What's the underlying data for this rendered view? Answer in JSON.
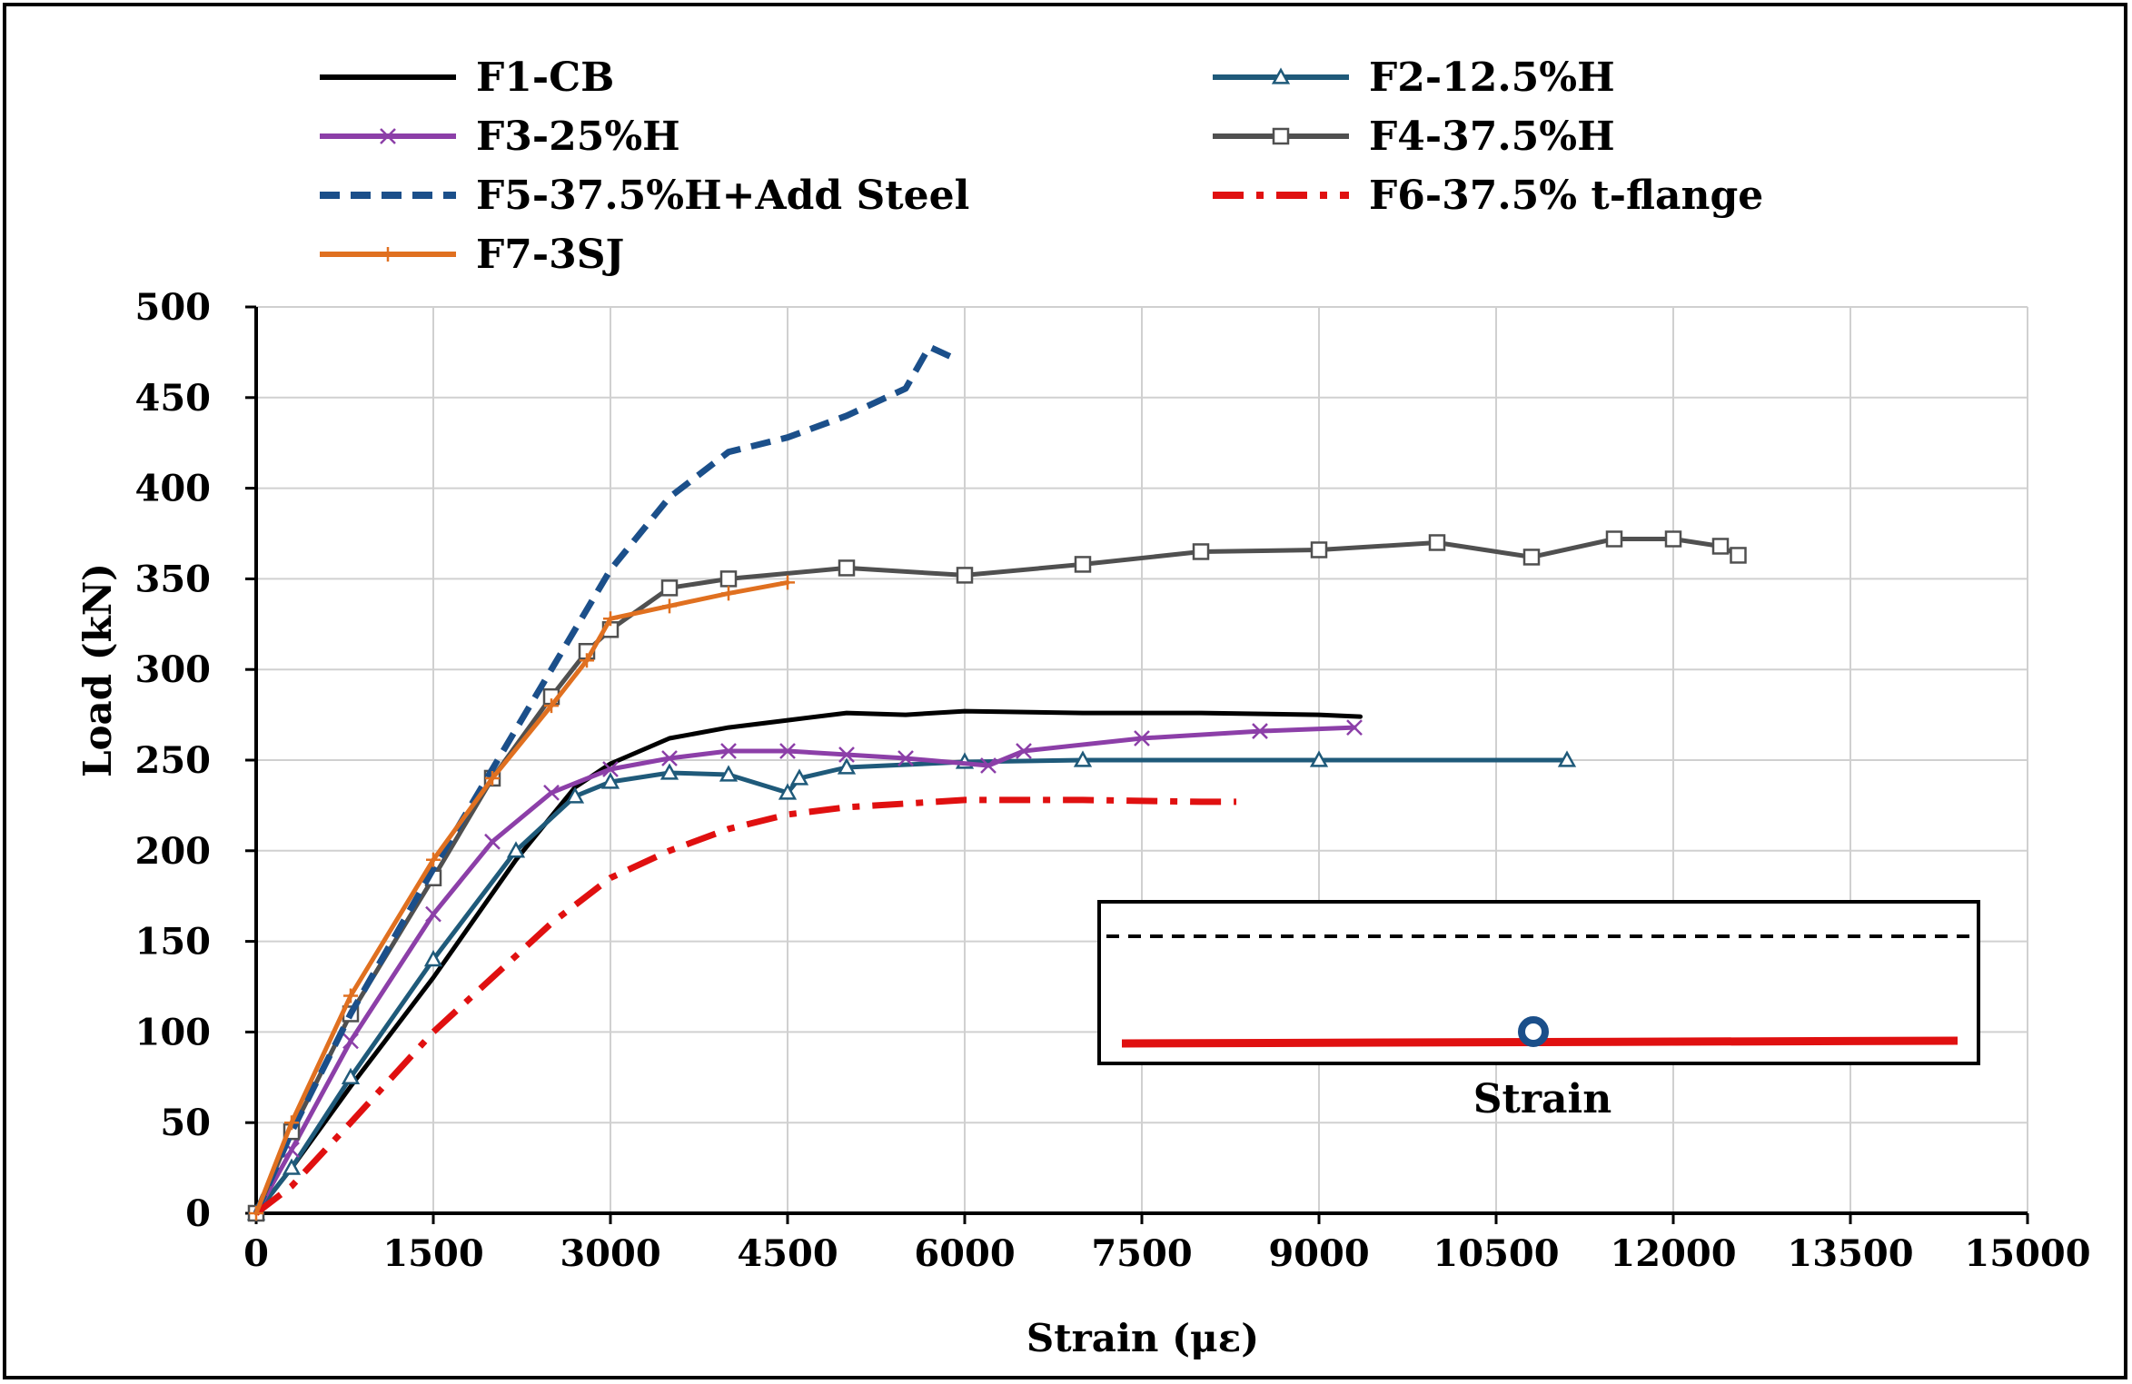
{
  "chart_data": {
    "type": "line",
    "title": "",
    "xlabel": "Strain (με)",
    "ylabel": "Load (kN)",
    "xlim": [
      0,
      15000
    ],
    "ylim": [
      0,
      500
    ],
    "x_ticks": [
      0,
      1500,
      3000,
      4500,
      6000,
      7500,
      9000,
      10500,
      12000,
      13500,
      15000
    ],
    "y_ticks": [
      0,
      50,
      100,
      150,
      200,
      250,
      300,
      350,
      400,
      450,
      500
    ],
    "grid": true,
    "legend_position": "top",
    "series": [
      {
        "name": "F1-CB",
        "color": "#000000",
        "dash": "solid",
        "marker": "none",
        "x": [
          0,
          300,
          800,
          1500,
          2200,
          2700,
          3000,
          3500,
          4000,
          4500,
          5000,
          5500,
          6000,
          7000,
          8000,
          9000,
          9350
        ],
        "y": [
          0,
          25,
          70,
          130,
          195,
          235,
          248,
          262,
          268,
          272,
          276,
          275,
          277,
          276,
          276,
          275,
          274
        ]
      },
      {
        "name": "F2-12.5%H",
        "color": "#1f5a7a",
        "dash": "solid",
        "marker": "triangle",
        "x": [
          0,
          300,
          800,
          1500,
          2200,
          2700,
          3000,
          3500,
          4000,
          4500,
          4600,
          5000,
          6000,
          7000,
          9000,
          11100
        ],
        "y": [
          0,
          25,
          75,
          140,
          200,
          230,
          238,
          243,
          242,
          232,
          240,
          246,
          249,
          250,
          250,
          250
        ]
      },
      {
        "name": "F3-25%H",
        "color": "#8c3fa8",
        "dash": "solid",
        "marker": "x",
        "x": [
          0,
          300,
          800,
          1500,
          2000,
          2500,
          3000,
          3500,
          4000,
          4500,
          5000,
          5500,
          6200,
          6500,
          7500,
          8500,
          9300
        ],
        "y": [
          0,
          35,
          95,
          165,
          205,
          232,
          245,
          251,
          255,
          255,
          253,
          251,
          247,
          255,
          262,
          266,
          268
        ]
      },
      {
        "name": "F4-37.5%H",
        "color": "#505050",
        "dash": "solid",
        "marker": "square",
        "x": [
          0,
          300,
          800,
          1500,
          2000,
          2500,
          2800,
          3000,
          3500,
          4000,
          5000,
          6000,
          7000,
          8000,
          9000,
          10000,
          10800,
          11500,
          12000,
          12400,
          12550
        ],
        "y": [
          0,
          45,
          110,
          185,
          240,
          285,
          310,
          322,
          345,
          350,
          356,
          352,
          358,
          365,
          366,
          370,
          362,
          372,
          372,
          368,
          363
        ]
      },
      {
        "name": "F5-37.5%H+Add Steel",
        "color": "#1b4f8a",
        "dash": "dashed",
        "marker": "none",
        "x": [
          0,
          300,
          800,
          1500,
          2000,
          2500,
          3000,
          3500,
          4000,
          4500,
          5000,
          5500,
          5700,
          5900
        ],
        "y": [
          0,
          45,
          110,
          190,
          245,
          300,
          355,
          395,
          420,
          428,
          440,
          455,
          478,
          472
        ]
      },
      {
        "name": "F6-37.5% t-flange",
        "color": "#e01010",
        "dash": "dashdot",
        "marker": "none",
        "x": [
          0,
          300,
          800,
          1500,
          2500,
          3000,
          3500,
          4000,
          4500,
          5000,
          6000,
          7000,
          8000,
          8300
        ],
        "y": [
          0,
          15,
          50,
          100,
          160,
          185,
          200,
          212,
          220,
          224,
          228,
          228,
          227,
          227
        ]
      },
      {
        "name": "F7-3SJ",
        "color": "#e07020",
        "dash": "solid",
        "marker": "plus",
        "x": [
          0,
          300,
          800,
          1500,
          2000,
          2500,
          2800,
          3000,
          3500,
          4000,
          4500
        ],
        "y": [
          0,
          50,
          120,
          195,
          240,
          280,
          305,
          328,
          335,
          342,
          348
        ]
      }
    ],
    "inset": {
      "label": "Strain"
    }
  }
}
